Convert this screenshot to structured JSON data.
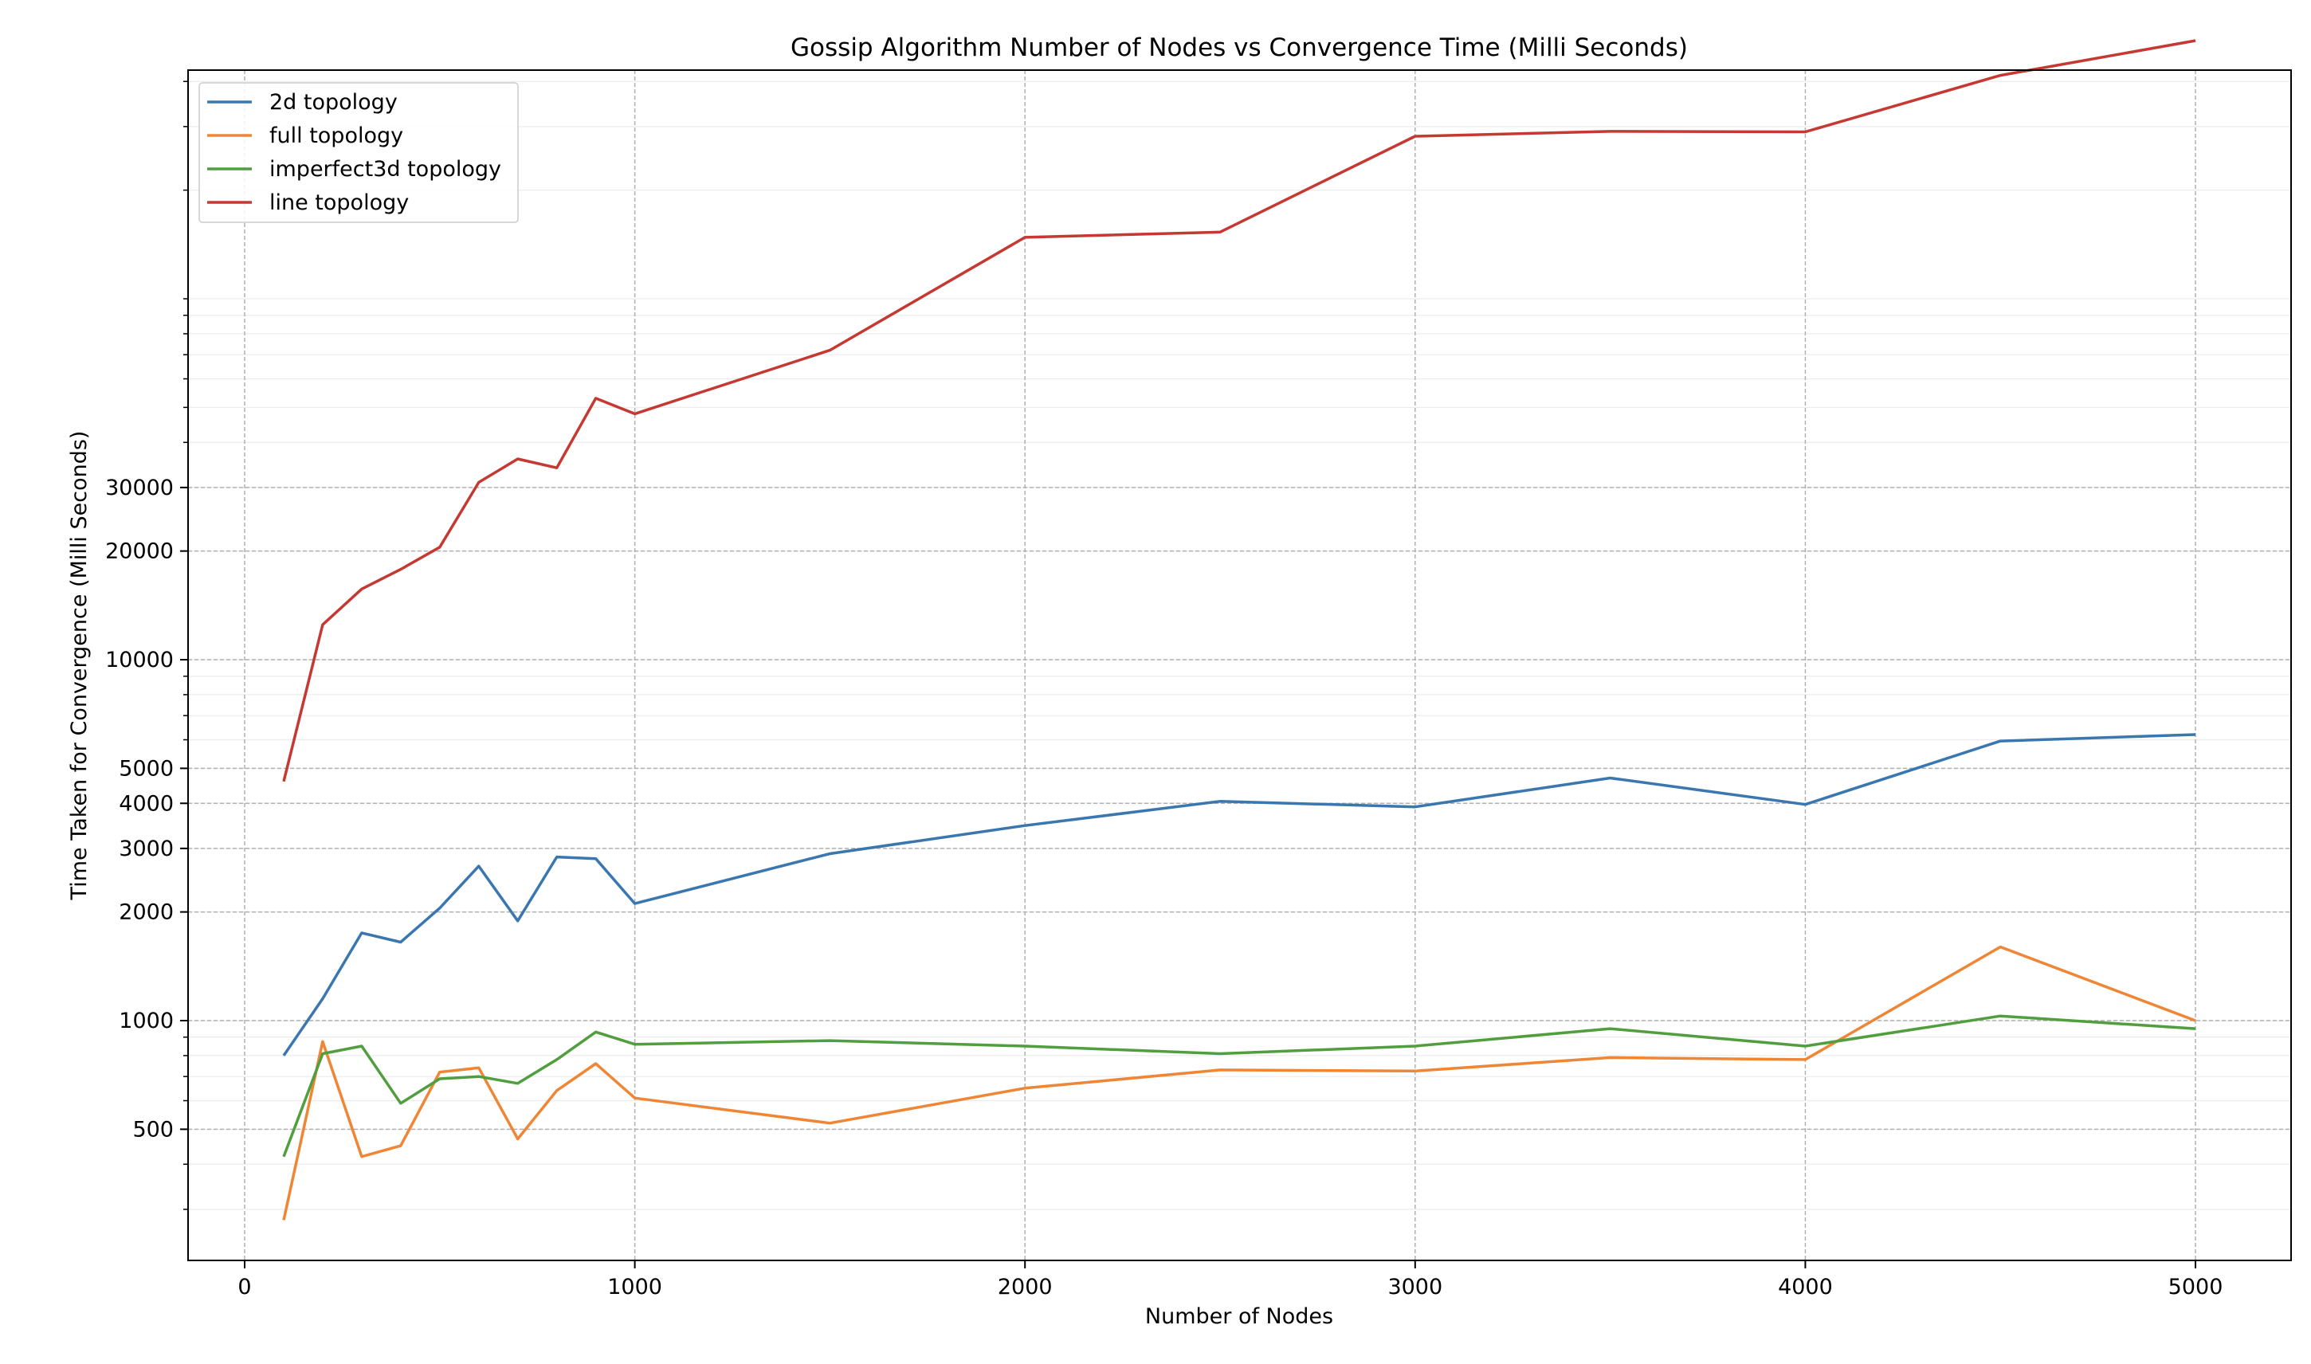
{
  "chart_data": {
    "type": "line",
    "title": "Gossip Algorithm Number of Nodes vs Convergence Time (Milli Seconds)",
    "xlabel": "Number of Nodes",
    "ylabel": "Time Taken for Convergence (Milli Seconds)",
    "x_scale": "linear",
    "y_scale": "symlog",
    "xlim": [
      -145,
      5245
    ],
    "x_ticks": [
      0,
      1000,
      2000,
      3000,
      4000,
      5000
    ],
    "y_ticks": [
      500,
      1000,
      2000,
      3000,
      4000,
      5000,
      10000,
      20000,
      30000
    ],
    "grid": true,
    "legend_position": "upper-left",
    "x": [
      100,
      200,
      300,
      400,
      500,
      600,
      700,
      800,
      900,
      1000,
      1500,
      2000,
      2500,
      3000,
      3500,
      4000,
      4500,
      5000
    ],
    "series": [
      {
        "name": "2d topology",
        "color": "#3a76af",
        "values": [
          800,
          1150,
          1750,
          1650,
          2050,
          2680,
          1890,
          2840,
          2810,
          2110,
          2900,
          3470,
          4050,
          3910,
          4700,
          3970,
          5950,
          6200
        ]
      },
      {
        "name": "full topology",
        "color": "#ef8636",
        "values": [
          280,
          875,
          420,
          450,
          720,
          740,
          470,
          640,
          760,
          610,
          520,
          650,
          730,
          725,
          790,
          780,
          1600,
          1000
        ]
      },
      {
        "name": "imperfect3d topology",
        "color": "#519e3e",
        "values": [
          420,
          810,
          850,
          590,
          690,
          700,
          670,
          780,
          930,
          860,
          880,
          850,
          810,
          850,
          950,
          850,
          1030,
          950
        ]
      },
      {
        "name": "line topology",
        "color": "#c53932",
        "values": [
          4600,
          12500,
          15700,
          17800,
          20500,
          31000,
          36000,
          34000,
          53000,
          48000,
          72000,
          148000,
          153000,
          282000,
          291000,
          290000,
          416000,
          519000
        ]
      }
    ]
  }
}
